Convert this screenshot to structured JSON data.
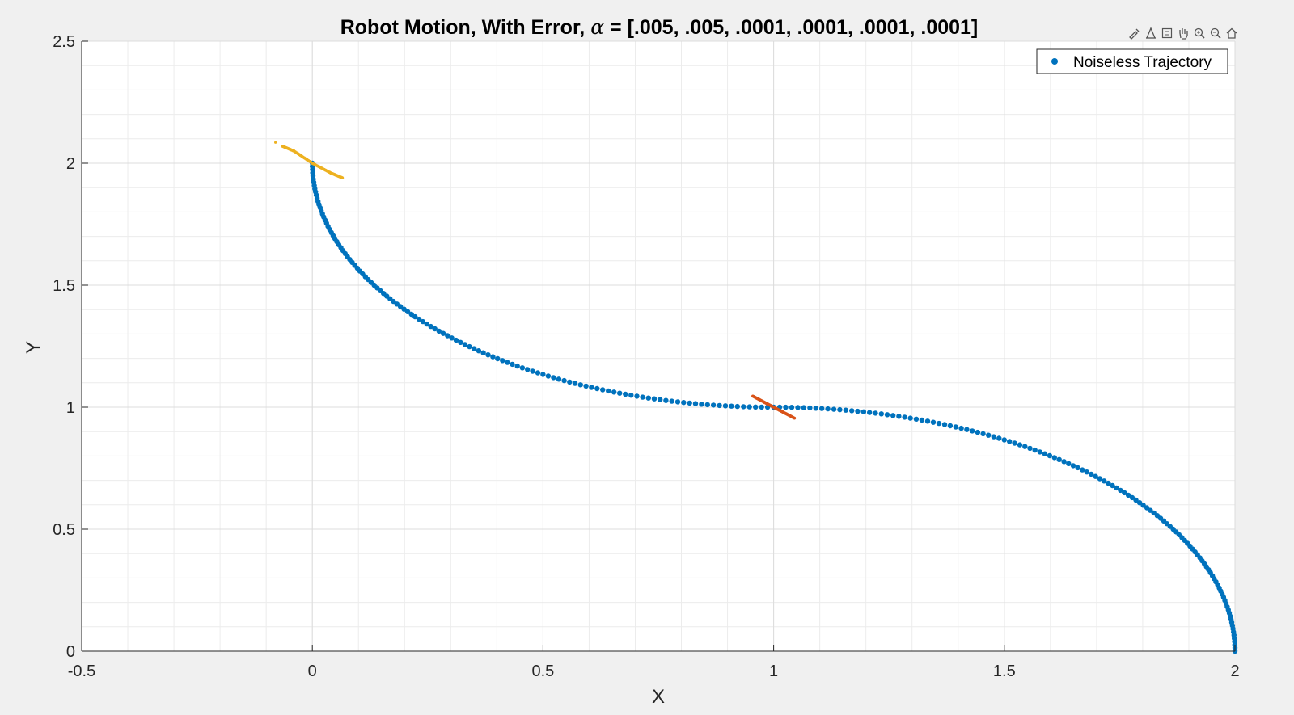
{
  "chart_data": {
    "type": "scatter",
    "title_text": "Robot Motion, With Error,",
    "title_alpha": "α",
    "title_rest": " = [.005, .005, .0001, .0001, .0001, .0001]",
    "xlabel": "X",
    "ylabel": "Y",
    "xlim": [
      -0.5,
      2
    ],
    "ylim": [
      0,
      2.5
    ],
    "xticks": [
      "-0.5",
      "0",
      "0.5",
      "1",
      "1.5",
      "2"
    ],
    "yticks": [
      "0",
      "0.5",
      "1",
      "1.5",
      "2",
      "2.5"
    ],
    "grid": true,
    "minor_grid": true,
    "legend": {
      "position": "top-right",
      "entries": [
        "Noiseless Trajectory"
      ]
    },
    "series": [
      {
        "name": "Noiseless Trajectory",
        "color": "#0072bd",
        "marker": "dot",
        "description_curve": "two quarter circles of radius 1",
        "arc1": {
          "center": [
            1,
            2
          ],
          "radius": 1,
          "from_point": [
            0,
            2
          ],
          "to_point": [
            1,
            1
          ]
        },
        "arc2": {
          "center": [
            1,
            0
          ],
          "radius": 1,
          "from_point": [
            1,
            1
          ],
          "to_point": [
            2,
            0
          ]
        }
      },
      {
        "color": "#edb120",
        "points": [
          [
            -0.08,
            2.085
          ],
          [
            -0.065,
            2.07
          ],
          [
            -0.04,
            2.05
          ],
          [
            0.0,
            2.0
          ],
          [
            0.04,
            1.96
          ],
          [
            0.065,
            1.94
          ]
        ]
      },
      {
        "color": "#d95319",
        "points": [
          [
            0.955,
            1.045
          ],
          [
            0.98,
            1.02
          ],
          [
            1.0,
            1.0
          ],
          [
            1.02,
            0.98
          ],
          [
            1.045,
            0.955
          ]
        ]
      }
    ]
  },
  "toolbar": {
    "icons": [
      "brush-icon",
      "datatip-icon",
      "legend-icon",
      "pan-icon",
      "zoom-in-icon",
      "zoom-out-icon",
      "home-icon"
    ]
  }
}
